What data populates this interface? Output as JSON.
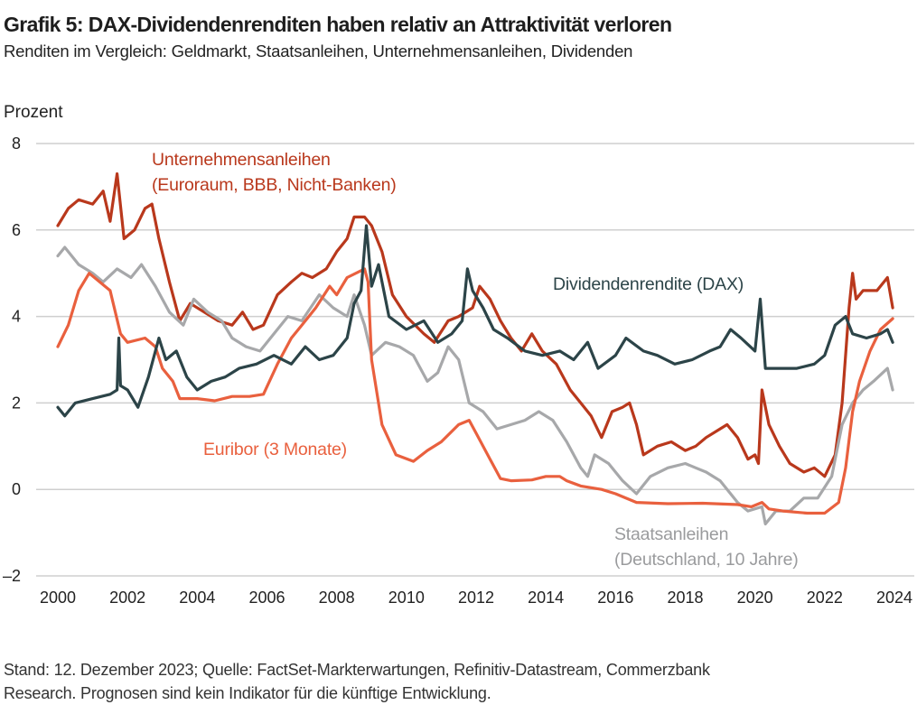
{
  "header": {
    "title": "Grafik 5: DAX-Dividendenrenditen haben relativ an Attraktivität verloren",
    "subtitle": "Renditen im Vergleich: Geldmarkt, Staatsanleihen, Unternehmensanleihen, Dividenden"
  },
  "footer": {
    "line1": "Stand: 12. Dezember 2023; Quelle: FactSet-Markterwartungen, Refinitiv-Datastream, Commerzbank",
    "line2": "Research. Prognosen sind kein Indikator für die künftige Entwicklung."
  },
  "chart_data": {
    "type": "line",
    "title": "Grafik 5: DAX-Dividendenrenditen haben relativ an Attraktivität verloren",
    "subtitle": "Renditen im Vergleich: Geldmarkt, Staatsanleihen, Unternehmensanleihen, Dividenden",
    "ylabel": "Prozent",
    "xlabel": "",
    "xlim": [
      2000,
      2024
    ],
    "ylim": [
      -2,
      8
    ],
    "x_ticks": [
      "2000",
      "2002",
      "2004",
      "2006",
      "2008",
      "2010",
      "2012",
      "2014",
      "2016",
      "2018",
      "2020",
      "2022",
      "2024"
    ],
    "y_ticks": [
      "8",
      "6",
      "4",
      "2",
      "0",
      "–2"
    ],
    "y_tick_values": [
      8,
      6,
      4,
      2,
      0,
      -2
    ],
    "grid": "horizontal",
    "legend": "inline labels",
    "series": [
      {
        "name": "Unternehmensanleihen (Euroraum, BBB, Nicht-Banken)",
        "label_line1": "Unternehmensanleihen",
        "label_line2": "(Euroraum, BBB, Nicht-Banken)",
        "color": "#b9381c",
        "points": [
          [
            2000.0,
            6.1
          ],
          [
            2000.3,
            6.5
          ],
          [
            2000.6,
            6.7
          ],
          [
            2001.0,
            6.6
          ],
          [
            2001.3,
            6.9
          ],
          [
            2001.5,
            6.2
          ],
          [
            2001.7,
            7.3
          ],
          [
            2001.9,
            5.8
          ],
          [
            2002.2,
            6.0
          ],
          [
            2002.5,
            6.5
          ],
          [
            2002.7,
            6.6
          ],
          [
            2002.9,
            5.8
          ],
          [
            2003.2,
            4.8
          ],
          [
            2003.5,
            3.9
          ],
          [
            2003.8,
            4.3
          ],
          [
            2004.2,
            4.1
          ],
          [
            2004.6,
            3.9
          ],
          [
            2005.0,
            3.8
          ],
          [
            2005.3,
            4.1
          ],
          [
            2005.6,
            3.7
          ],
          [
            2005.9,
            3.8
          ],
          [
            2006.3,
            4.5
          ],
          [
            2006.7,
            4.8
          ],
          [
            2007.0,
            5.0
          ],
          [
            2007.3,
            4.9
          ],
          [
            2007.7,
            5.1
          ],
          [
            2008.0,
            5.5
          ],
          [
            2008.3,
            5.8
          ],
          [
            2008.5,
            6.3
          ],
          [
            2008.8,
            6.3
          ],
          [
            2009.0,
            6.1
          ],
          [
            2009.3,
            5.5
          ],
          [
            2009.6,
            4.5
          ],
          [
            2010.0,
            4.0
          ],
          [
            2010.5,
            3.6
          ],
          [
            2010.8,
            3.4
          ],
          [
            2011.2,
            3.9
          ],
          [
            2011.5,
            4.0
          ],
          [
            2011.9,
            4.2
          ],
          [
            2012.1,
            4.7
          ],
          [
            2012.4,
            4.4
          ],
          [
            2012.7,
            3.9
          ],
          [
            2013.0,
            3.5
          ],
          [
            2013.3,
            3.2
          ],
          [
            2013.6,
            3.6
          ],
          [
            2013.9,
            3.2
          ],
          [
            2014.3,
            2.9
          ],
          [
            2014.7,
            2.3
          ],
          [
            2015.0,
            2.0
          ],
          [
            2015.3,
            1.7
          ],
          [
            2015.6,
            1.2
          ],
          [
            2015.9,
            1.8
          ],
          [
            2016.2,
            1.9
          ],
          [
            2016.4,
            2.0
          ],
          [
            2016.6,
            1.5
          ],
          [
            2016.8,
            0.8
          ],
          [
            2017.2,
            1.0
          ],
          [
            2017.6,
            1.1
          ],
          [
            2018.0,
            0.9
          ],
          [
            2018.3,
            1.0
          ],
          [
            2018.6,
            1.2
          ],
          [
            2019.0,
            1.4
          ],
          [
            2019.2,
            1.5
          ],
          [
            2019.5,
            1.2
          ],
          [
            2019.8,
            0.7
          ],
          [
            2020.0,
            0.8
          ],
          [
            2020.1,
            0.6
          ],
          [
            2020.2,
            2.3
          ],
          [
            2020.4,
            1.5
          ],
          [
            2020.7,
            1.0
          ],
          [
            2021.0,
            0.6
          ],
          [
            2021.4,
            0.4
          ],
          [
            2021.7,
            0.5
          ],
          [
            2022.0,
            0.3
          ],
          [
            2022.3,
            0.8
          ],
          [
            2022.5,
            2.0
          ],
          [
            2022.7,
            4.2
          ],
          [
            2022.8,
            5.0
          ],
          [
            2022.9,
            4.4
          ],
          [
            2023.1,
            4.6
          ],
          [
            2023.5,
            4.6
          ],
          [
            2023.8,
            4.9
          ],
          [
            2023.95,
            4.2
          ]
        ]
      },
      {
        "name": "Staatsanleihen (Deutschland, 10 Jahre)",
        "label_line1": "Staatsanleihen",
        "label_line2": "(Deutschland, 10 Jahre)",
        "color": "#a7a8aa",
        "points": [
          [
            2000.0,
            5.4
          ],
          [
            2000.2,
            5.6
          ],
          [
            2000.6,
            5.2
          ],
          [
            2001.0,
            5.0
          ],
          [
            2001.3,
            4.8
          ],
          [
            2001.7,
            5.1
          ],
          [
            2002.1,
            4.9
          ],
          [
            2002.4,
            5.2
          ],
          [
            2002.8,
            4.7
          ],
          [
            2003.2,
            4.1
          ],
          [
            2003.6,
            3.8
          ],
          [
            2003.9,
            4.4
          ],
          [
            2004.3,
            4.1
          ],
          [
            2004.7,
            3.9
          ],
          [
            2005.0,
            3.5
          ],
          [
            2005.4,
            3.3
          ],
          [
            2005.8,
            3.2
          ],
          [
            2006.2,
            3.6
          ],
          [
            2006.6,
            4.0
          ],
          [
            2007.0,
            3.9
          ],
          [
            2007.5,
            4.5
          ],
          [
            2007.9,
            4.2
          ],
          [
            2008.3,
            4.0
          ],
          [
            2008.5,
            4.5
          ],
          [
            2008.8,
            3.8
          ],
          [
            2009.0,
            3.1
          ],
          [
            2009.4,
            3.4
          ],
          [
            2009.8,
            3.3
          ],
          [
            2010.2,
            3.1
          ],
          [
            2010.6,
            2.5
          ],
          [
            2010.9,
            2.7
          ],
          [
            2011.2,
            3.3
          ],
          [
            2011.5,
            3.0
          ],
          [
            2011.8,
            2.0
          ],
          [
            2012.2,
            1.8
          ],
          [
            2012.6,
            1.4
          ],
          [
            2013.0,
            1.5
          ],
          [
            2013.4,
            1.6
          ],
          [
            2013.8,
            1.8
          ],
          [
            2014.2,
            1.6
          ],
          [
            2014.6,
            1.1
          ],
          [
            2015.0,
            0.5
          ],
          [
            2015.2,
            0.3
          ],
          [
            2015.4,
            0.8
          ],
          [
            2015.8,
            0.6
          ],
          [
            2016.2,
            0.2
          ],
          [
            2016.6,
            -0.1
          ],
          [
            2017.0,
            0.3
          ],
          [
            2017.5,
            0.5
          ],
          [
            2018.0,
            0.6
          ],
          [
            2018.3,
            0.5
          ],
          [
            2018.6,
            0.4
          ],
          [
            2019.0,
            0.2
          ],
          [
            2019.5,
            -0.3
          ],
          [
            2019.8,
            -0.5
          ],
          [
            2020.2,
            -0.4
          ],
          [
            2020.3,
            -0.8
          ],
          [
            2020.6,
            -0.5
          ],
          [
            2021.0,
            -0.5
          ],
          [
            2021.4,
            -0.2
          ],
          [
            2021.8,
            -0.2
          ],
          [
            2022.2,
            0.3
          ],
          [
            2022.5,
            1.5
          ],
          [
            2022.8,
            2.0
          ],
          [
            2023.1,
            2.3
          ],
          [
            2023.4,
            2.5
          ],
          [
            2023.8,
            2.8
          ],
          [
            2023.95,
            2.3
          ]
        ]
      },
      {
        "name": "Euribor (3 Monate)",
        "label_line1": "Euribor (3 Monate)",
        "color": "#e9603e",
        "points": [
          [
            2000.0,
            3.3
          ],
          [
            2000.3,
            3.8
          ],
          [
            2000.6,
            4.6
          ],
          [
            2000.9,
            5.0
          ],
          [
            2001.2,
            4.8
          ],
          [
            2001.5,
            4.6
          ],
          [
            2001.8,
            3.6
          ],
          [
            2002.0,
            3.4
          ],
          [
            2002.5,
            3.5
          ],
          [
            2002.8,
            3.3
          ],
          [
            2003.0,
            2.8
          ],
          [
            2003.3,
            2.5
          ],
          [
            2003.5,
            2.1
          ],
          [
            2004.0,
            2.1
          ],
          [
            2004.5,
            2.05
          ],
          [
            2005.0,
            2.15
          ],
          [
            2005.5,
            2.15
          ],
          [
            2005.9,
            2.2
          ],
          [
            2006.3,
            2.9
          ],
          [
            2006.7,
            3.5
          ],
          [
            2007.0,
            3.8
          ],
          [
            2007.4,
            4.2
          ],
          [
            2007.8,
            4.7
          ],
          [
            2008.0,
            4.5
          ],
          [
            2008.3,
            4.9
          ],
          [
            2008.8,
            5.1
          ],
          [
            2008.9,
            4.8
          ],
          [
            2009.0,
            3.0
          ],
          [
            2009.3,
            1.5
          ],
          [
            2009.7,
            0.8
          ],
          [
            2010.2,
            0.65
          ],
          [
            2010.6,
            0.9
          ],
          [
            2011.0,
            1.1
          ],
          [
            2011.5,
            1.5
          ],
          [
            2011.8,
            1.6
          ],
          [
            2012.0,
            1.3
          ],
          [
            2012.4,
            0.7
          ],
          [
            2012.7,
            0.25
          ],
          [
            2013.0,
            0.2
          ],
          [
            2013.6,
            0.22
          ],
          [
            2014.0,
            0.3
          ],
          [
            2014.4,
            0.3
          ],
          [
            2014.6,
            0.2
          ],
          [
            2015.0,
            0.08
          ],
          [
            2015.6,
            0.0
          ],
          [
            2016.0,
            -0.1
          ],
          [
            2016.6,
            -0.3
          ],
          [
            2017.5,
            -0.33
          ],
          [
            2018.5,
            -0.32
          ],
          [
            2019.5,
            -0.35
          ],
          [
            2019.9,
            -0.4
          ],
          [
            2020.2,
            -0.3
          ],
          [
            2020.4,
            -0.45
          ],
          [
            2020.8,
            -0.5
          ],
          [
            2021.5,
            -0.55
          ],
          [
            2022.0,
            -0.55
          ],
          [
            2022.4,
            -0.3
          ],
          [
            2022.6,
            0.5
          ],
          [
            2022.8,
            1.8
          ],
          [
            2023.0,
            2.5
          ],
          [
            2023.3,
            3.2
          ],
          [
            2023.6,
            3.7
          ],
          [
            2023.95,
            3.95
          ]
        ]
      },
      {
        "name": "Dividendenrendite (DAX)",
        "label_line1": "Dividendenrendite (DAX)",
        "color": "#2c4448",
        "points": [
          [
            2000.0,
            1.9
          ],
          [
            2000.2,
            1.7
          ],
          [
            2000.5,
            2.0
          ],
          [
            2001.0,
            2.1
          ],
          [
            2001.5,
            2.2
          ],
          [
            2001.7,
            2.3
          ],
          [
            2001.75,
            3.5
          ],
          [
            2001.8,
            2.4
          ],
          [
            2002.0,
            2.3
          ],
          [
            2002.3,
            1.9
          ],
          [
            2002.6,
            2.6
          ],
          [
            2002.9,
            3.5
          ],
          [
            2003.1,
            3.0
          ],
          [
            2003.4,
            3.2
          ],
          [
            2003.7,
            2.6
          ],
          [
            2004.0,
            2.3
          ],
          [
            2004.4,
            2.5
          ],
          [
            2004.8,
            2.6
          ],
          [
            2005.2,
            2.8
          ],
          [
            2005.7,
            2.9
          ],
          [
            2006.2,
            3.1
          ],
          [
            2006.7,
            2.9
          ],
          [
            2007.1,
            3.3
          ],
          [
            2007.5,
            3.0
          ],
          [
            2007.9,
            3.1
          ],
          [
            2008.3,
            3.5
          ],
          [
            2008.5,
            4.3
          ],
          [
            2008.7,
            4.6
          ],
          [
            2008.85,
            6.1
          ],
          [
            2009.0,
            4.7
          ],
          [
            2009.2,
            5.2
          ],
          [
            2009.5,
            4.0
          ],
          [
            2010.0,
            3.7
          ],
          [
            2010.5,
            3.9
          ],
          [
            2010.9,
            3.4
          ],
          [
            2011.3,
            3.6
          ],
          [
            2011.6,
            3.9
          ],
          [
            2011.75,
            5.1
          ],
          [
            2011.9,
            4.6
          ],
          [
            2012.2,
            4.2
          ],
          [
            2012.5,
            3.7
          ],
          [
            2012.9,
            3.5
          ],
          [
            2013.4,
            3.2
          ],
          [
            2013.9,
            3.1
          ],
          [
            2014.4,
            3.2
          ],
          [
            2014.8,
            3.0
          ],
          [
            2015.2,
            3.4
          ],
          [
            2015.5,
            2.8
          ],
          [
            2016.0,
            3.1
          ],
          [
            2016.3,
            3.5
          ],
          [
            2016.8,
            3.2
          ],
          [
            2017.2,
            3.1
          ],
          [
            2017.7,
            2.9
          ],
          [
            2018.2,
            3.0
          ],
          [
            2018.7,
            3.2
          ],
          [
            2019.0,
            3.3
          ],
          [
            2019.3,
            3.7
          ],
          [
            2019.6,
            3.5
          ],
          [
            2020.0,
            3.2
          ],
          [
            2020.15,
            4.4
          ],
          [
            2020.3,
            2.8
          ],
          [
            2020.7,
            2.8
          ],
          [
            2021.2,
            2.8
          ],
          [
            2021.7,
            2.9
          ],
          [
            2022.0,
            3.1
          ],
          [
            2022.3,
            3.8
          ],
          [
            2022.6,
            4.0
          ],
          [
            2022.8,
            3.6
          ],
          [
            2023.2,
            3.5
          ],
          [
            2023.6,
            3.6
          ],
          [
            2023.8,
            3.7
          ],
          [
            2023.95,
            3.4
          ]
        ]
      }
    ]
  }
}
